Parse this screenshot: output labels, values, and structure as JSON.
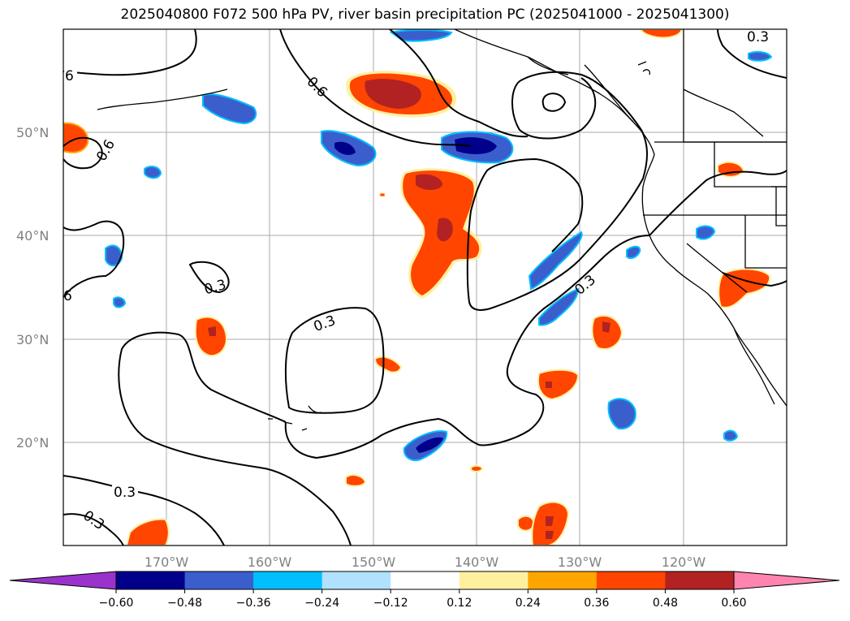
{
  "title": "2025040800 F072 500 hPa PV, river basin precipitation PC (2025041000 - 2025041300)",
  "lat_labels": [
    "50°N",
    "40°N",
    "30°N",
    "20°N"
  ],
  "lon_labels": [
    "170°W",
    "160°W",
    "150°W",
    "140°W",
    "130°W",
    "120°W"
  ],
  "contour_labels": [
    "0.3",
    "6",
    "0.6",
    "0.6",
    "0.3",
    "0.3",
    "0.3",
    "0.3",
    "0.3",
    "0.3",
    "6"
  ],
  "colorbar": {
    "ticks": [
      "−0.60",
      "−0.48",
      "−0.36",
      "−0.24",
      "−0.12",
      "0.12",
      "0.24",
      "0.36",
      "0.48",
      "0.60"
    ],
    "colors": [
      "#9933cc",
      "#00008b",
      "#3a5fcd",
      "#00bfff",
      "#b0e2ff",
      "#ffffff",
      "#fff0a0",
      "#ffa500",
      "#ff4500",
      "#b22222",
      "#ff85b0"
    ]
  },
  "colors": {
    "contour": "#000000",
    "grid": "#aaaaaa",
    "coast": "#000000"
  }
}
